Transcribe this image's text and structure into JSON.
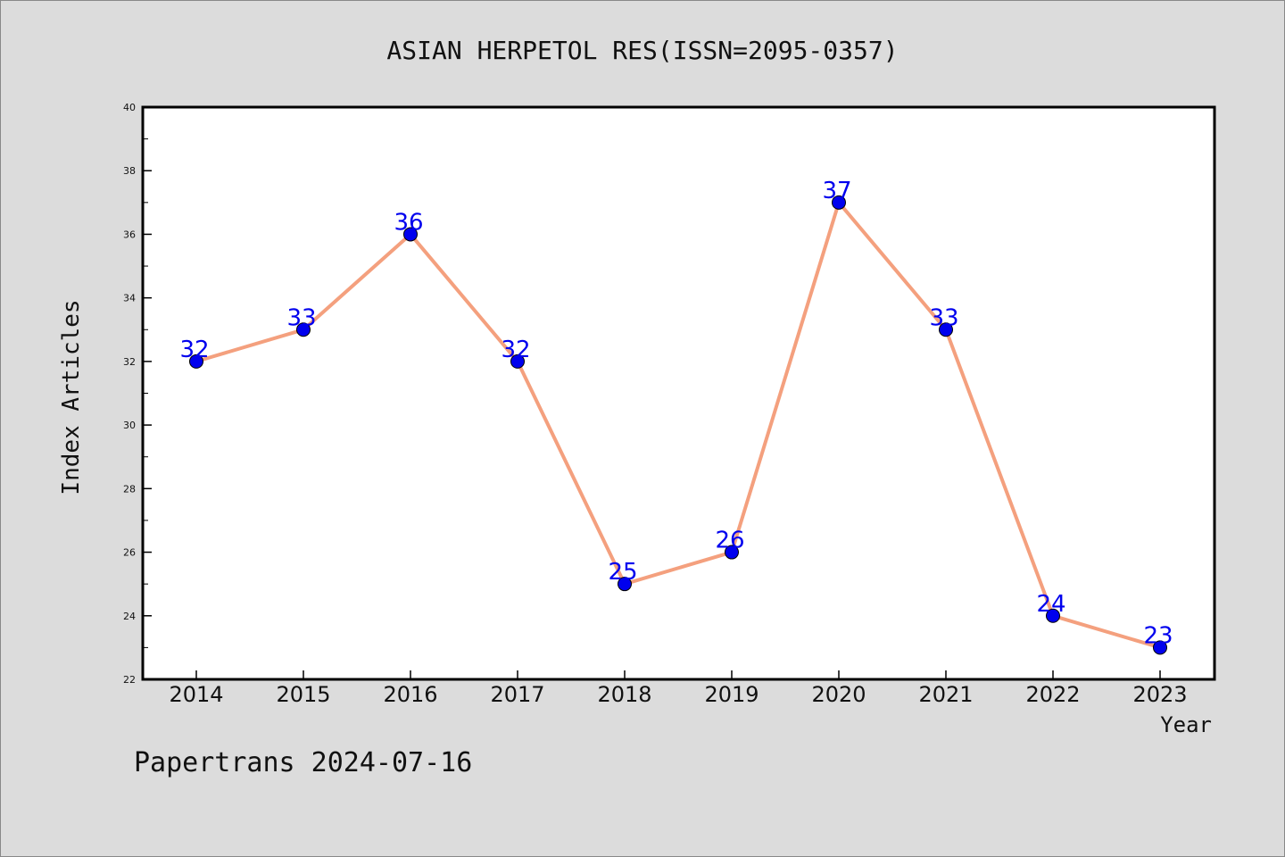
{
  "chart_data": {
    "type": "line",
    "title": "ASIAN HERPETOL RES(ISSN=2095-0357)",
    "xlabel": "Year",
    "ylabel": "Index Articles",
    "categories": [
      "2014",
      "2015",
      "2016",
      "2017",
      "2018",
      "2019",
      "2020",
      "2021",
      "2022",
      "2023"
    ],
    "series": [
      {
        "values": [
          32,
          33,
          36,
          32,
          25,
          26,
          37,
          33,
          24,
          23
        ]
      }
    ],
    "ylim": [
      22,
      40
    ],
    "yticks": [
      "22",
      "24",
      "26",
      "28",
      "30",
      "32",
      "34",
      "36",
      "38",
      "40"
    ],
    "grid": false,
    "data_labels": true
  },
  "footer": {
    "credit": "Papertrans 2024-07-16"
  },
  "colors": {
    "background": "#dcdcdc",
    "plot_area": "#ffffff",
    "line": "#f4a07e",
    "marker": "#0000ee",
    "label": "#0000ee",
    "text": "#111111"
  }
}
